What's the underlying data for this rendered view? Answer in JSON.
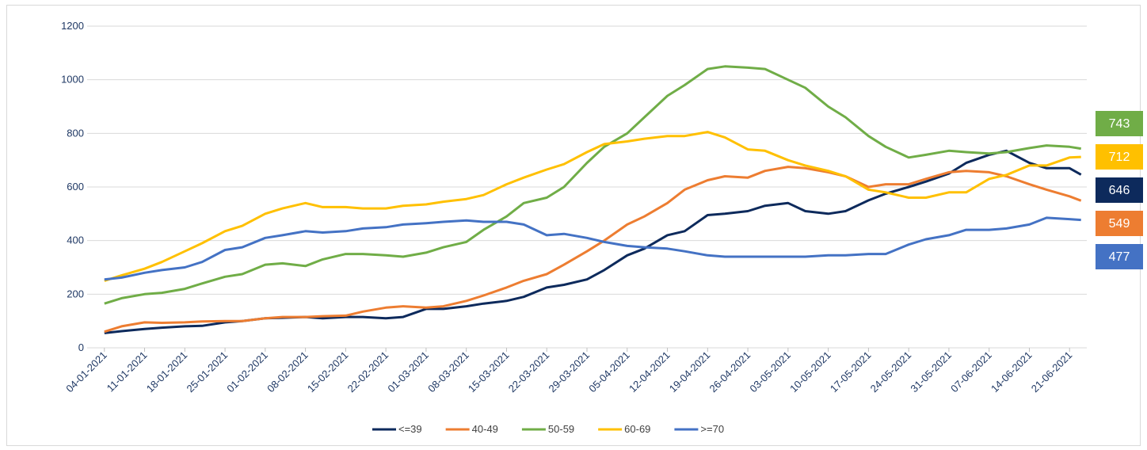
{
  "chart_data": {
    "type": "line",
    "x": [
      "04-01-2021",
      "07-01-2021",
      "11-01-2021",
      "14-01-2021",
      "18-01-2021",
      "21-01-2021",
      "25-01-2021",
      "28-01-2021",
      "01-02-2021",
      "04-02-2021",
      "08-02-2021",
      "11-02-2021",
      "15-02-2021",
      "18-02-2021",
      "22-02-2021",
      "25-02-2021",
      "01-03-2021",
      "04-03-2021",
      "08-03-2021",
      "11-03-2021",
      "15-03-2021",
      "18-03-2021",
      "22-03-2021",
      "25-03-2021",
      "29-03-2021",
      "01-04-2021",
      "05-04-2021",
      "08-04-2021",
      "12-04-2021",
      "15-04-2021",
      "19-04-2021",
      "22-04-2021",
      "26-04-2021",
      "29-04-2021",
      "03-05-2021",
      "06-05-2021",
      "10-05-2021",
      "13-05-2021",
      "17-05-2021",
      "20-05-2021",
      "24-05-2021",
      "27-05-2021",
      "31-05-2021",
      "03-06-2021",
      "07-06-2021",
      "10-06-2021",
      "14-06-2021",
      "17-06-2021",
      "21-06-2021",
      "23-06-2021"
    ],
    "series": [
      {
        "name": "<=39",
        "color": "#0d2a5c",
        "values": [
          55,
          62,
          70,
          75,
          80,
          82,
          95,
          100,
          110,
          112,
          115,
          110,
          115,
          115,
          110,
          115,
          145,
          145,
          155,
          165,
          175,
          190,
          225,
          235,
          255,
          290,
          345,
          370,
          420,
          435,
          495,
          500,
          510,
          530,
          540,
          510,
          500,
          510,
          550,
          575,
          600,
          620,
          650,
          690,
          720,
          735,
          690,
          670,
          670,
          646
        ]
      },
      {
        "name": "40-49",
        "color": "#ed7d31",
        "values": [
          60,
          80,
          95,
          93,
          95,
          98,
          100,
          100,
          110,
          115,
          115,
          118,
          120,
          135,
          150,
          155,
          150,
          155,
          175,
          195,
          225,
          250,
          275,
          310,
          360,
          400,
          460,
          490,
          540,
          590,
          625,
          640,
          635,
          660,
          675,
          670,
          655,
          640,
          600,
          610,
          610,
          630,
          655,
          660,
          655,
          640,
          610,
          590,
          565,
          549
        ]
      },
      {
        "name": "50-59",
        "color": "#70ad47",
        "values": [
          165,
          185,
          200,
          205,
          220,
          240,
          265,
          275,
          310,
          315,
          305,
          330,
          350,
          350,
          345,
          340,
          355,
          375,
          395,
          440,
          490,
          540,
          560,
          600,
          690,
          750,
          800,
          860,
          940,
          980,
          1040,
          1050,
          1045,
          1040,
          1000,
          970,
          900,
          860,
          790,
          750,
          710,
          720,
          735,
          730,
          725,
          730,
          745,
          755,
          750,
          743
        ]
      },
      {
        "name": "60-69",
        "color": "#ffc000",
        "values": [
          250,
          270,
          295,
          320,
          360,
          390,
          435,
          455,
          500,
          520,
          540,
          525,
          525,
          520,
          520,
          530,
          535,
          545,
          555,
          570,
          610,
          635,
          665,
          685,
          730,
          760,
          770,
          780,
          790,
          790,
          805,
          785,
          740,
          735,
          700,
          680,
          660,
          640,
          590,
          580,
          560,
          560,
          580,
          580,
          630,
          645,
          680,
          680,
          710,
          712
        ]
      },
      {
        "name": ">=70",
        "color": "#4472c4",
        "values": [
          255,
          262,
          280,
          290,
          300,
          320,
          365,
          375,
          410,
          420,
          435,
          430,
          435,
          445,
          450,
          460,
          465,
          470,
          475,
          470,
          470,
          460,
          420,
          425,
          410,
          395,
          380,
          375,
          370,
          360,
          345,
          340,
          340,
          340,
          340,
          340,
          345,
          345,
          350,
          350,
          385,
          405,
          420,
          440,
          440,
          445,
          460,
          485,
          480,
          477
        ]
      }
    ],
    "xlim": [
      "01-01-2021",
      "24-06-2021"
    ],
    "xticks": [
      "04-01-2021",
      "11-01-2021",
      "18-01-2021",
      "25-01-2021",
      "01-02-2021",
      "08-02-2021",
      "15-02-2021",
      "22-02-2021",
      "01-03-2021",
      "08-03-2021",
      "15-03-2021",
      "22-03-2021",
      "29-03-2021",
      "05-04-2021",
      "12-04-2021",
      "19-04-2021",
      "26-04-2021",
      "03-05-2021",
      "10-05-2021",
      "17-05-2021",
      "24-05-2021",
      "31-05-2021",
      "07-06-2021",
      "14-06-2021",
      "21-06-2021"
    ],
    "ylim": [
      0,
      1200
    ],
    "yticks": [
      0,
      200,
      400,
      600,
      800,
      1000,
      1200
    ],
    "grid": true,
    "legend": "bottom"
  }
}
